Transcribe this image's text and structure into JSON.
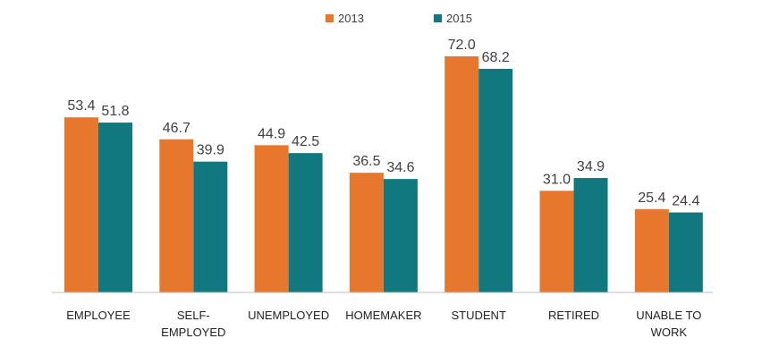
{
  "chart_data": {
    "type": "bar",
    "categories": [
      [
        "EMPLOYEE"
      ],
      [
        "SELF-",
        "EMPLOYED"
      ],
      [
        "UNEMPLOYED"
      ],
      [
        "HOMEMAKER"
      ],
      [
        "STUDENT"
      ],
      [
        "RETIRED"
      ],
      [
        "UNABLE TO",
        "WORK"
      ]
    ],
    "series": [
      {
        "name": "2013",
        "color": "#E8772E",
        "values": [
          53.4,
          46.7,
          44.9,
          36.5,
          72.0,
          31.0,
          25.4
        ]
      },
      {
        "name": "2015",
        "color": "#127880",
        "values": [
          51.8,
          39.9,
          42.5,
          34.6,
          68.2,
          34.9,
          24.4
        ]
      }
    ],
    "value_format_decimals": 1,
    "title": "",
    "xlabel": "",
    "ylabel": "",
    "ylim": [
      0,
      80
    ],
    "grid": false,
    "legend": "top-center"
  }
}
